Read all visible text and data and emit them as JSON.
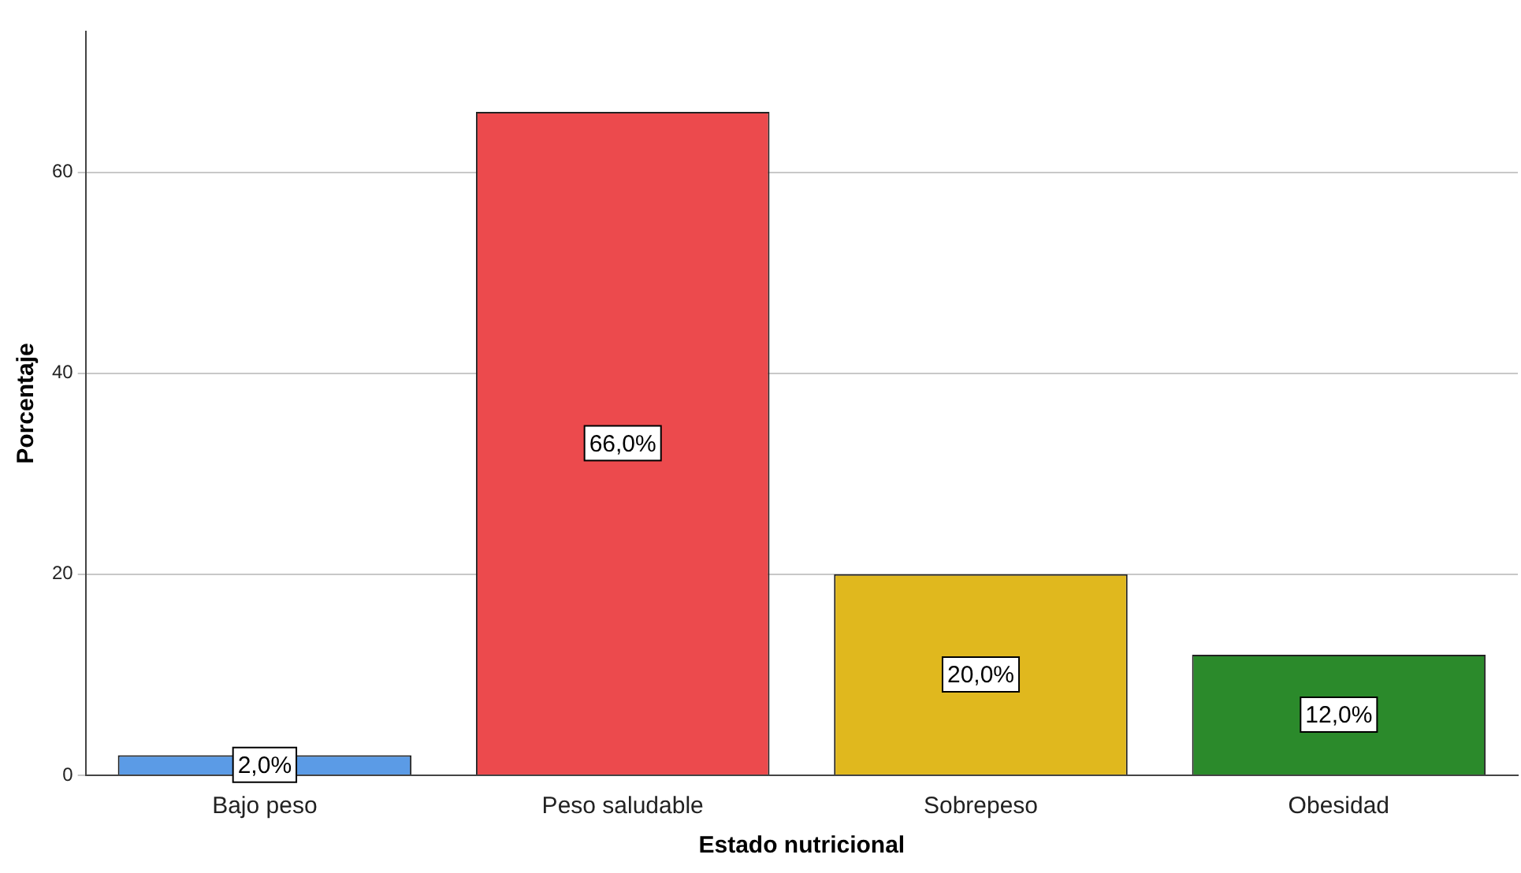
{
  "chart_data": {
    "type": "bar",
    "xlabel": "Estado nutricional",
    "ylabel": "Porcentaje",
    "categories": [
      "Bajo peso",
      "Peso saludable",
      "Sobrepeso",
      "Obesidad"
    ],
    "values": [
      2.0,
      66.0,
      20.0,
      12.0
    ],
    "colors": [
      "#5b9be6",
      "#ec4a4d",
      "#e0b81e",
      "#2b8a2b"
    ],
    "value_labels": [
      "2,0%",
      "66,0%",
      "20,0%",
      "12,0%"
    ],
    "ylim": [
      0,
      74
    ],
    "yticks": [
      0,
      20,
      40,
      60
    ],
    "grid": "y"
  }
}
